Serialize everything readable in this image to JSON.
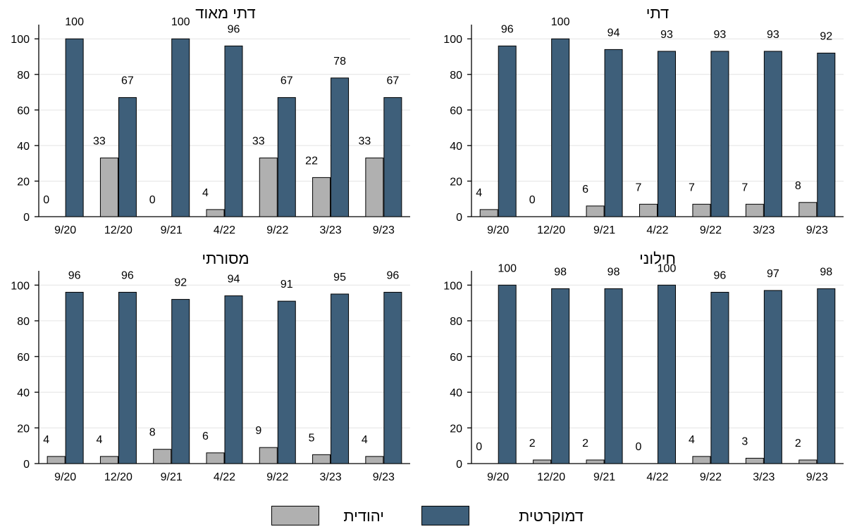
{
  "legend": {
    "jewish_label": "יהודית",
    "democratic_label": "דמוקרטית"
  },
  "colors": {
    "jewish": "#b0b0b0",
    "democratic": "#3e5f7a"
  },
  "chart_data": [
    {
      "type": "bar",
      "title": "דתי מאוד",
      "categories": [
        "9/20",
        "12/20",
        "9/21",
        "4/22",
        "9/22",
        "3/23",
        "9/23"
      ],
      "ylim": [
        0,
        100
      ],
      "yticks": [
        0,
        20,
        40,
        60,
        80,
        100
      ],
      "grid": true,
      "series": [
        {
          "name": "יהודית",
          "values": [
            0,
            33,
            0,
            4,
            33,
            22,
            33
          ]
        },
        {
          "name": "דמוקרטית",
          "values": [
            100,
            67,
            100,
            96,
            67,
            78,
            67
          ]
        }
      ]
    },
    {
      "type": "bar",
      "title": "דתי",
      "categories": [
        "9/20",
        "12/20",
        "9/21",
        "4/22",
        "9/22",
        "3/23",
        "9/23"
      ],
      "ylim": [
        0,
        100
      ],
      "yticks": [
        0,
        20,
        40,
        60,
        80,
        100
      ],
      "grid": true,
      "series": [
        {
          "name": "יהודית",
          "values": [
            4,
            0,
            6,
            7,
            7,
            7,
            8
          ]
        },
        {
          "name": "דמוקרטית",
          "values": [
            96,
            100,
            94,
            93,
            93,
            93,
            92
          ]
        }
      ]
    },
    {
      "type": "bar",
      "title": "מסורתי",
      "categories": [
        "9/20",
        "12/20",
        "9/21",
        "4/22",
        "9/22",
        "3/23",
        "9/23"
      ],
      "ylim": [
        0,
        100
      ],
      "yticks": [
        0,
        20,
        40,
        60,
        80,
        100
      ],
      "grid": true,
      "series": [
        {
          "name": "יהודית",
          "values": [
            4,
            4,
            8,
            6,
            9,
            5,
            4
          ]
        },
        {
          "name": "דמוקרטית",
          "values": [
            96,
            96,
            92,
            94,
            91,
            95,
            96
          ]
        }
      ]
    },
    {
      "type": "bar",
      "title": "חילוני",
      "categories": [
        "9/20",
        "12/20",
        "9/21",
        "4/22",
        "9/22",
        "3/23",
        "9/23"
      ],
      "ylim": [
        0,
        100
      ],
      "yticks": [
        0,
        20,
        40,
        60,
        80,
        100
      ],
      "grid": true,
      "series": [
        {
          "name": "יהודית",
          "values": [
            0,
            2,
            2,
            0,
            4,
            3,
            2
          ]
        },
        {
          "name": "דמוקרטית",
          "values": [
            100,
            98,
            98,
            100,
            96,
            97,
            98
          ]
        }
      ]
    }
  ]
}
